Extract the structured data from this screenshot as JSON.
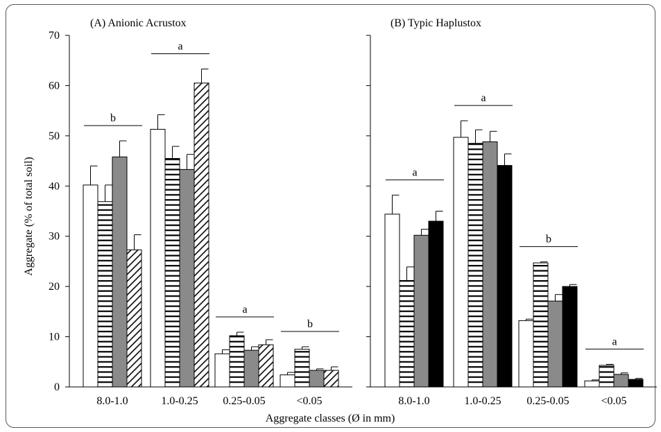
{
  "figure": {
    "ylabel": "Aggregate (% of total soil)",
    "xlabel": "Aggregate classes (Ø in mm)"
  },
  "chart_data": [
    {
      "type": "bar",
      "title": "(A) Anionic Acrustox",
      "categories": [
        "8.0-1.0",
        "1.0-0.25",
        "0.25-0.05",
        "<0.05"
      ],
      "ylim": [
        0,
        70
      ],
      "yticks": [
        0,
        10,
        20,
        30,
        40,
        50,
        60,
        70
      ],
      "series": [
        {
          "fill": "white",
          "values": [
            40.2,
            51.3,
            6.6,
            2.4
          ],
          "errors": [
            3.8,
            2.9,
            0.8,
            0.5
          ]
        },
        {
          "fill": "hlines",
          "values": [
            36.9,
            45.5,
            10.2,
            7.5
          ],
          "errors": [
            3.3,
            2.4,
            0.7,
            0.5
          ]
        },
        {
          "fill": "gray",
          "values": [
            45.8,
            43.3,
            7.3,
            3.3
          ],
          "errors": [
            3.2,
            3.0,
            0.7,
            0.3
          ]
        },
        {
          "fill": "diag",
          "values": [
            27.3,
            60.5,
            8.4,
            3.3
          ],
          "errors": [
            3.0,
            2.8,
            1.0,
            0.7
          ]
        }
      ],
      "group_letters": [
        "b",
        "a",
        "a",
        "b"
      ],
      "grid": false
    },
    {
      "type": "bar",
      "title": "(B) Typic Haplustox",
      "categories": [
        "8.0-1.0",
        "1.0-0.25",
        "0.25-0.05",
        "<0.05"
      ],
      "ylim": [
        0,
        70
      ],
      "series": [
        {
          "fill": "white",
          "values": [
            34.4,
            49.7,
            13.2,
            1.2
          ],
          "errors": [
            3.8,
            3.3,
            0.3,
            0.2
          ]
        },
        {
          "fill": "hlines",
          "values": [
            21.2,
            48.5,
            24.7,
            4.3
          ],
          "errors": [
            2.7,
            2.7,
            0.2,
            0.2
          ]
        },
        {
          "fill": "gray",
          "values": [
            30.2,
            48.8,
            17.1,
            2.5
          ],
          "errors": [
            1.2,
            2.1,
            1.3,
            0.3
          ]
        },
        {
          "fill": "black",
          "values": [
            33.0,
            44.1,
            20.0,
            1.5
          ],
          "errors": [
            2.0,
            2.3,
            0.4,
            0.2
          ]
        }
      ],
      "group_letters": [
        "a",
        "a",
        "b",
        "a"
      ],
      "grid": false
    }
  ]
}
